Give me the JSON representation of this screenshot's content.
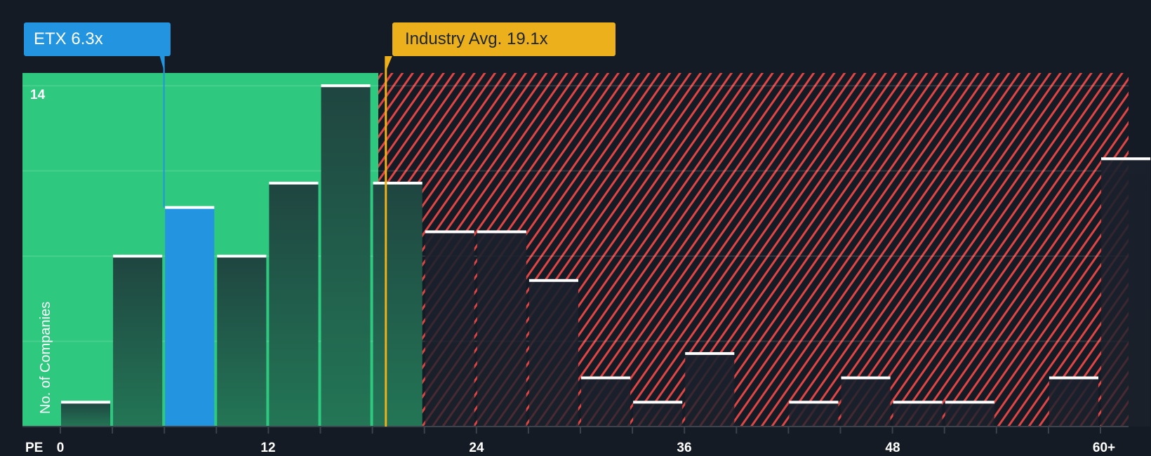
{
  "colors": {
    "background": "#151b24",
    "good_zone": "#2ec97f",
    "bad_zone_stripe": "#e04545",
    "company": "#2394df",
    "industry": "#ebb01b",
    "bar_top": "#ffffff"
  },
  "callouts": {
    "company": {
      "label": "ETX 6.3x",
      "ticker": "ETX",
      "value": 6.3
    },
    "industry": {
      "label": "Industry Avg. 19.1x",
      "value": 19.1
    }
  },
  "axes": {
    "y_label": "No. of Companies",
    "y_tick_label": "14",
    "x_title": "PE",
    "x_tick_labels": [
      "0",
      "12",
      "24",
      "36",
      "48",
      "60+"
    ]
  },
  "chart_data": {
    "type": "bar",
    "title": "",
    "xlabel": "PE",
    "ylabel": "No. of Companies",
    "categories": [
      "0-3",
      "3-6",
      "6-9",
      "9-12",
      "12-15",
      "15-18",
      "18-21",
      "21-24",
      "24-27",
      "27-30",
      "30-33",
      "33-36",
      "36-39",
      "39-42",
      "42-45",
      "45-48",
      "48-51",
      "51-54",
      "54-57",
      "57-60",
      "60+"
    ],
    "values": [
      1,
      7,
      9,
      7,
      10,
      14,
      10,
      8,
      8,
      6,
      2,
      1,
      3,
      0,
      1,
      2,
      1,
      1,
      0,
      2,
      11
    ],
    "highlight_index": 2,
    "highlight_label": "ETX 6.3x",
    "reference_lines": [
      {
        "name": "ETX",
        "value": 6.3,
        "color": "#2394df"
      },
      {
        "name": "Industry Avg.",
        "value": 19.1,
        "color": "#ebb01b"
      }
    ],
    "zones": [
      {
        "name": "below-average",
        "from": 0,
        "to": 18.3,
        "color": "#2ec97f"
      },
      {
        "name": "above-average",
        "from": 18.3,
        "to": 61.5,
        "color": "#e04545",
        "pattern": "diagonal-stripes"
      }
    ],
    "xticks": [
      0,
      12,
      24,
      36,
      48,
      "60+"
    ],
    "yticks_labeled": [
      14
    ],
    "ylim": [
      0,
      14.5
    ],
    "grid": true,
    "legend": "none"
  }
}
